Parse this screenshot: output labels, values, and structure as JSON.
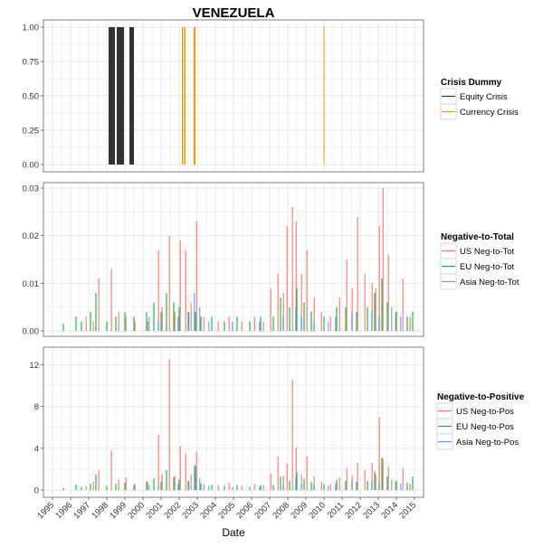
{
  "figure": {
    "title": "VENEZUELA",
    "xlabel": "Date"
  },
  "colors": {
    "equity": "#333333",
    "currency": "#E69F00",
    "us": "#F8766D",
    "eu": "#00BA38",
    "asia": "#619CFF",
    "grid": "#e5e5e5",
    "panel_border": "#7f7f7f"
  },
  "chart_data": [
    {
      "type": "bar",
      "panel": "crisis",
      "ylim": [
        0,
        1
      ],
      "yticks": [
        "0.00",
        "0.25",
        "0.50",
        "0.75",
        "1.00"
      ],
      "xlim": [
        1995,
        2015
      ],
      "xticks": [
        "1995",
        "1996",
        "1997",
        "1998",
        "1999",
        "2000",
        "2001",
        "2002",
        "2003",
        "2004",
        "2005",
        "2006",
        "2007",
        "2008",
        "2009",
        "2010",
        "2011",
        "2012",
        "2013",
        "2014",
        "2015"
      ],
      "legend": {
        "title": "Crisis Dummy",
        "position": "right",
        "entries": [
          "Equity Crisis",
          "Currency Crisis"
        ]
      },
      "series": [
        {
          "name": "Equity Crisis",
          "intervals": [
            [
              1998.1,
              1998.45
            ],
            [
              1998.55,
              1998.95
            ],
            [
              1999.25,
              1999.5
            ]
          ],
          "value": 1
        },
        {
          "name": "Currency Crisis",
          "intervals": [
            [
              2002.15,
              2002.22
            ],
            [
              2002.27,
              2002.35
            ],
            [
              2002.8,
              2002.9
            ],
            [
              2009.98,
              2010.02
            ]
          ],
          "value": 1
        }
      ]
    },
    {
      "type": "bar",
      "panel": "neg_to_tot",
      "ylim": [
        0,
        0.03
      ],
      "yticks": [
        "0.00",
        "0.01",
        "0.02",
        "0.03"
      ],
      "legend": {
        "title": "Negative-to-Total",
        "position": "right",
        "entries": [
          "US Neg-to-Tot",
          "EU Neg-to-Tot",
          "Asia Neg-to-Tot"
        ]
      },
      "series": [
        {
          "name": "US Neg-to-Tot",
          "points": [
            [
              1996.9,
              0.003
            ],
            [
              1997.3,
              0.002
            ],
            [
              1997.6,
              0.011
            ],
            [
              1998.3,
              0.013
            ],
            [
              1998.7,
              0.004
            ],
            [
              1999.1,
              0.003
            ],
            [
              1999.6,
              0.002
            ],
            [
              2000.3,
              0.002
            ],
            [
              2000.9,
              0.017
            ],
            [
              2001.1,
              0.005
            ],
            [
              2001.5,
              0.02
            ],
            [
              2001.8,
              0.004
            ],
            [
              2002.1,
              0.019
            ],
            [
              2002.4,
              0.017
            ],
            [
              2002.7,
              0.006
            ],
            [
              2003.0,
              0.023
            ],
            [
              2003.4,
              0.003
            ],
            [
              2004.2,
              0.002
            ],
            [
              2004.8,
              0.003
            ],
            [
              2005.5,
              0.002
            ],
            [
              2006.2,
              0.003
            ],
            [
              2006.7,
              0.002
            ],
            [
              2007.1,
              0.009
            ],
            [
              2007.5,
              0.012
            ],
            [
              2007.8,
              0.008
            ],
            [
              2008.0,
              0.022
            ],
            [
              2008.3,
              0.026
            ],
            [
              2008.5,
              0.023
            ],
            [
              2008.8,
              0.012
            ],
            [
              2009.1,
              0.017
            ],
            [
              2009.5,
              0.007
            ],
            [
              2009.9,
              0.004
            ],
            [
              2010.4,
              0.003
            ],
            [
              2010.9,
              0.007
            ],
            [
              2011.3,
              0.015
            ],
            [
              2011.6,
              0.009
            ],
            [
              2011.9,
              0.024
            ],
            [
              2012.3,
              0.012
            ],
            [
              2012.7,
              0.01
            ],
            [
              2012.9,
              0.009
            ],
            [
              2013.1,
              0.022
            ],
            [
              2013.3,
              0.03
            ],
            [
              2013.6,
              0.016
            ],
            [
              2014.0,
              0.004
            ],
            [
              2014.4,
              0.011
            ],
            [
              2014.8,
              0.003
            ]
          ]
        },
        {
          "name": "EU Neg-to-Tot",
          "points": [
            [
              1995.6,
              0.0015
            ],
            [
              1996.3,
              0.003
            ],
            [
              1996.6,
              0.002
            ],
            [
              1997.1,
              0.004
            ],
            [
              1997.4,
              0.008
            ],
            [
              1998.0,
              0.002
            ],
            [
              1998.5,
              0.003
            ],
            [
              1999.0,
              0.004
            ],
            [
              1999.5,
              0.003
            ],
            [
              2000.2,
              0.004
            ],
            [
              2000.6,
              0.006
            ],
            [
              2001.0,
              0.004
            ],
            [
              2001.3,
              0.008
            ],
            [
              2001.7,
              0.006
            ],
            [
              2002.0,
              0.005
            ],
            [
              2002.5,
              0.004
            ],
            [
              2002.9,
              0.004
            ],
            [
              2003.2,
              0.003
            ],
            [
              2003.8,
              0.003
            ],
            [
              2004.5,
              0.002
            ],
            [
              2005.2,
              0.003
            ],
            [
              2005.9,
              0.002
            ],
            [
              2006.5,
              0.003
            ],
            [
              2007.2,
              0.003
            ],
            [
              2007.6,
              0.007
            ],
            [
              2008.1,
              0.005
            ],
            [
              2008.5,
              0.009
            ],
            [
              2008.9,
              0.006
            ],
            [
              2009.3,
              0.004
            ],
            [
              2010.0,
              0.003
            ],
            [
              2010.7,
              0.005
            ],
            [
              2011.2,
              0.005
            ],
            [
              2011.8,
              0.004
            ],
            [
              2012.4,
              0.005
            ],
            [
              2012.8,
              0.008
            ],
            [
              2013.2,
              0.011
            ],
            [
              2013.5,
              0.006
            ],
            [
              2014.0,
              0.004
            ],
            [
              2014.6,
              0.003
            ],
            [
              2014.9,
              0.004
            ]
          ]
        },
        {
          "name": "Asia Neg-to-Tot",
          "points": [
            [
              2000.3,
              0.003
            ],
            [
              2000.8,
              0.002
            ],
            [
              2001.9,
              0.003
            ],
            [
              2002.5,
              0.004
            ],
            [
              2002.8,
              0.008
            ],
            [
              2003.1,
              0.005
            ],
            [
              2003.6,
              0.002
            ],
            [
              2004.9,
              0.002
            ],
            [
              2006.4,
              0.002
            ],
            [
              2007.7,
              0.003
            ],
            [
              2008.4,
              0.005
            ],
            [
              2008.7,
              0.003
            ],
            [
              2009.4,
              0.002
            ],
            [
              2010.2,
              0.002
            ],
            [
              2010.6,
              0.003
            ],
            [
              2011.5,
              0.004
            ],
            [
              2012.6,
              0.004
            ],
            [
              2013.0,
              0.003
            ],
            [
              2013.7,
              0.005
            ],
            [
              2014.2,
              0.003
            ]
          ]
        }
      ]
    },
    {
      "type": "bar",
      "panel": "neg_to_pos",
      "ylim": [
        0,
        13
      ],
      "yticks": [
        "0",
        "4",
        "8",
        "12"
      ],
      "legend": {
        "title": "Negative-to-Positive",
        "position": "right",
        "entries": [
          "US Neg-to-Pos",
          "EU Neg-to-Pos",
          "Asia Neg-to-Pos"
        ]
      },
      "series": [
        {
          "name": "US Neg-to-Pos",
          "points": [
            [
              1996.9,
              0.4
            ],
            [
              1997.3,
              0.8
            ],
            [
              1997.6,
              1.9
            ],
            [
              1998.3,
              3.8
            ],
            [
              1998.7,
              1.0
            ],
            [
              1999.1,
              1.2
            ],
            [
              1999.6,
              0.6
            ],
            [
              2000.3,
              0.8
            ],
            [
              2000.9,
              5.3
            ],
            [
              2001.1,
              1.5
            ],
            [
              2001.5,
              12.5
            ],
            [
              2001.8,
              1.4
            ],
            [
              2002.1,
              4.2
            ],
            [
              2002.4,
              3.5
            ],
            [
              2002.7,
              1.5
            ],
            [
              2003.0,
              3.7
            ],
            [
              2003.4,
              0.6
            ],
            [
              2004.2,
              0.5
            ],
            [
              2004.8,
              0.7
            ],
            [
              2005.5,
              0.4
            ],
            [
              2006.2,
              0.6
            ],
            [
              2006.7,
              0.5
            ],
            [
              2007.1,
              1.6
            ],
            [
              2007.5,
              3.2
            ],
            [
              2007.8,
              1.4
            ],
            [
              2008.0,
              2.5
            ],
            [
              2008.3,
              10.6
            ],
            [
              2008.5,
              4.1
            ],
            [
              2008.8,
              1.5
            ],
            [
              2009.1,
              3.2
            ],
            [
              2009.5,
              1.3
            ],
            [
              2009.9,
              0.8
            ],
            [
              2010.4,
              0.6
            ],
            [
              2010.9,
              1.2
            ],
            [
              2011.3,
              2.1
            ],
            [
              2011.6,
              1.4
            ],
            [
              2011.9,
              2.6
            ],
            [
              2012.3,
              1.9
            ],
            [
              2012.7,
              2.6
            ],
            [
              2012.9,
              1.5
            ],
            [
              2013.1,
              7.0
            ],
            [
              2013.3,
              3.0
            ],
            [
              2013.6,
              2.2
            ],
            [
              2014.0,
              0.8
            ],
            [
              2014.4,
              2.1
            ],
            [
              2014.8,
              0.6
            ]
          ]
        },
        {
          "name": "EU Neg-to-Pos",
          "points": [
            [
              1995.6,
              0.2
            ],
            [
              1996.3,
              0.5
            ],
            [
              1996.6,
              0.3
            ],
            [
              1997.1,
              0.6
            ],
            [
              1997.4,
              1.5
            ],
            [
              1998.0,
              0.4
            ],
            [
              1998.5,
              0.6
            ],
            [
              1999.0,
              0.7
            ],
            [
              1999.5,
              0.5
            ],
            [
              2000.2,
              0.8
            ],
            [
              2000.6,
              1.1
            ],
            [
              2001.0,
              0.8
            ],
            [
              2001.3,
              1.9
            ],
            [
              2001.7,
              1.2
            ],
            [
              2002.0,
              1.0
            ],
            [
              2002.5,
              0.9
            ],
            [
              2002.9,
              2.3
            ],
            [
              2003.2,
              0.6
            ],
            [
              2003.8,
              0.5
            ],
            [
              2004.5,
              0.4
            ],
            [
              2005.2,
              0.5
            ],
            [
              2005.9,
              0.3
            ],
            [
              2006.5,
              0.5
            ],
            [
              2007.2,
              0.5
            ],
            [
              2007.6,
              1.3
            ],
            [
              2008.1,
              0.9
            ],
            [
              2008.5,
              1.7
            ],
            [
              2008.9,
              1.1
            ],
            [
              2009.3,
              0.8
            ],
            [
              2010.0,
              0.6
            ],
            [
              2010.7,
              1.0
            ],
            [
              2011.2,
              0.9
            ],
            [
              2011.8,
              0.8
            ],
            [
              2012.4,
              0.9
            ],
            [
              2012.8,
              1.8
            ],
            [
              2013.2,
              3.1
            ],
            [
              2013.5,
              1.3
            ],
            [
              2014.0,
              0.9
            ],
            [
              2014.6,
              0.7
            ],
            [
              2014.9,
              1.3
            ]
          ]
        },
        {
          "name": "Asia Neg-to-Pos",
          "points": [
            [
              2000.3,
              0.5
            ],
            [
              2000.8,
              0.3
            ],
            [
              2001.9,
              0.6
            ],
            [
              2002.5,
              0.8
            ],
            [
              2002.8,
              2.4
            ],
            [
              2003.1,
              1.1
            ],
            [
              2003.6,
              0.4
            ],
            [
              2004.9,
              0.3
            ],
            [
              2006.4,
              0.3
            ],
            [
              2007.7,
              0.5
            ],
            [
              2008.4,
              1.1
            ],
            [
              2008.7,
              0.6
            ],
            [
              2009.4,
              0.5
            ],
            [
              2010.2,
              0.4
            ],
            [
              2010.6,
              0.6
            ],
            [
              2011.5,
              0.9
            ],
            [
              2012.6,
              0.9
            ],
            [
              2013.0,
              0.7
            ],
            [
              2013.7,
              1.0
            ],
            [
              2014.2,
              0.6
            ]
          ]
        }
      ]
    }
  ]
}
